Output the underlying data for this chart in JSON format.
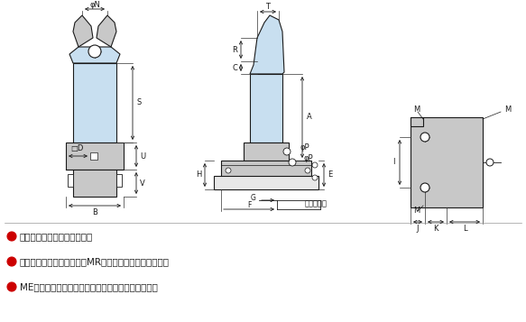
{
  "bg_color": "#ffffff",
  "line_color": "#1a1a1a",
  "light_blue": "#c8dff0",
  "gray_fill": "#c8c8c8",
  "gray_dark": "#a0a0a0",
  "red_bullet": "#cc0000",
  "bullet_texts": [
    "取付台と平行に移動します。",
    "替刊は標準型エアーニッパMR型の替刊が使用できます。",
    "ME型で切断能力が不足する場合にご使用ください。"
  ],
  "phiN": "φN",
  "S": "S",
  "D": "□D",
  "U": "U",
  "V": "V",
  "B": "B",
  "T": "T",
  "R": "R",
  "C": "C",
  "A": "A",
  "phiP": "φP",
  "H": "H",
  "E": "E",
  "G": "G",
  "F": "F",
  "stroke": "ストローク",
  "M": "M",
  "I": "I",
  "J": "J",
  "K": "K",
  "L": "L"
}
